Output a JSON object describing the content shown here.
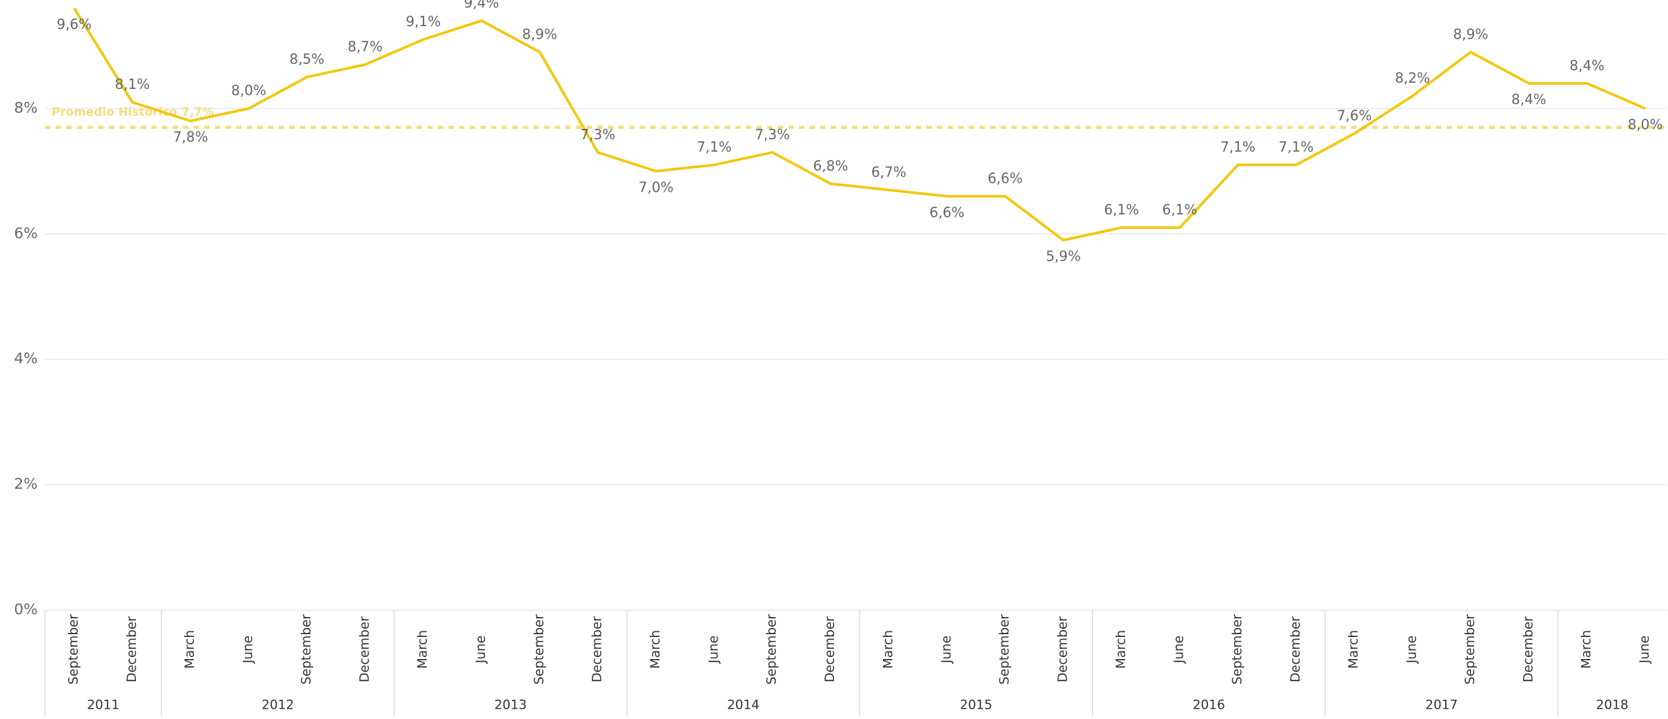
{
  "chart_data": {
    "type": "line",
    "categories": [
      "September",
      "December",
      "March",
      "June",
      "September",
      "December",
      "March",
      "June",
      "September",
      "December",
      "March",
      "June",
      "September",
      "December",
      "March",
      "June",
      "September",
      "December",
      "March",
      "June",
      "September",
      "December",
      "March",
      "June",
      "September",
      "December",
      "March",
      "June"
    ],
    "years": [
      {
        "label": "2011",
        "count": 2
      },
      {
        "label": "2012",
        "count": 4
      },
      {
        "label": "2013",
        "count": 4
      },
      {
        "label": "2014",
        "count": 4
      },
      {
        "label": "2015",
        "count": 4
      },
      {
        "label": "2016",
        "count": 4
      },
      {
        "label": "2017",
        "count": 4
      },
      {
        "label": "2018",
        "count": 2
      }
    ],
    "series": [
      {
        "color": "#f2c811",
        "values": [
          9.6,
          8.1,
          7.8,
          8.0,
          8.5,
          8.7,
          9.1,
          9.4,
          8.9,
          7.3,
          7.0,
          7.1,
          7.3,
          6.8,
          6.7,
          6.6,
          6.6,
          5.9,
          6.1,
          6.1,
          7.1,
          7.1,
          7.6,
          8.2,
          8.9,
          8.4,
          8.4,
          8.0
        ],
        "value_labels": [
          "9,6%",
          "8,1%",
          "7,8%",
          "8,0%",
          "8,5%",
          "8,7%",
          "9,1%",
          "9,4%",
          "8,9%",
          "7,3%",
          "7,0%",
          "7,1%",
          "7,3%",
          "6,8%",
          "6,7%",
          "6,6%",
          "6,6%",
          "5,9%",
          "6,1%",
          "6,1%",
          "7,1%",
          "7,1%",
          "7,6%",
          "8,2%",
          "8,9%",
          "8,4%",
          "8,4%",
          "8,0%"
        ]
      }
    ],
    "reference_line": {
      "label": "Promedio Histórico 7,7%",
      "value": 7.7,
      "color": "#f6dd7e"
    },
    "ylim": [
      0,
      9.73
    ],
    "yticks": [
      {
        "value": 0,
        "label": "0%"
      },
      {
        "value": 2,
        "label": "2%"
      },
      {
        "value": 4,
        "label": "4%"
      },
      {
        "value": 6,
        "label": "6%"
      },
      {
        "value": 8,
        "label": "8%"
      }
    ],
    "grid": true
  }
}
